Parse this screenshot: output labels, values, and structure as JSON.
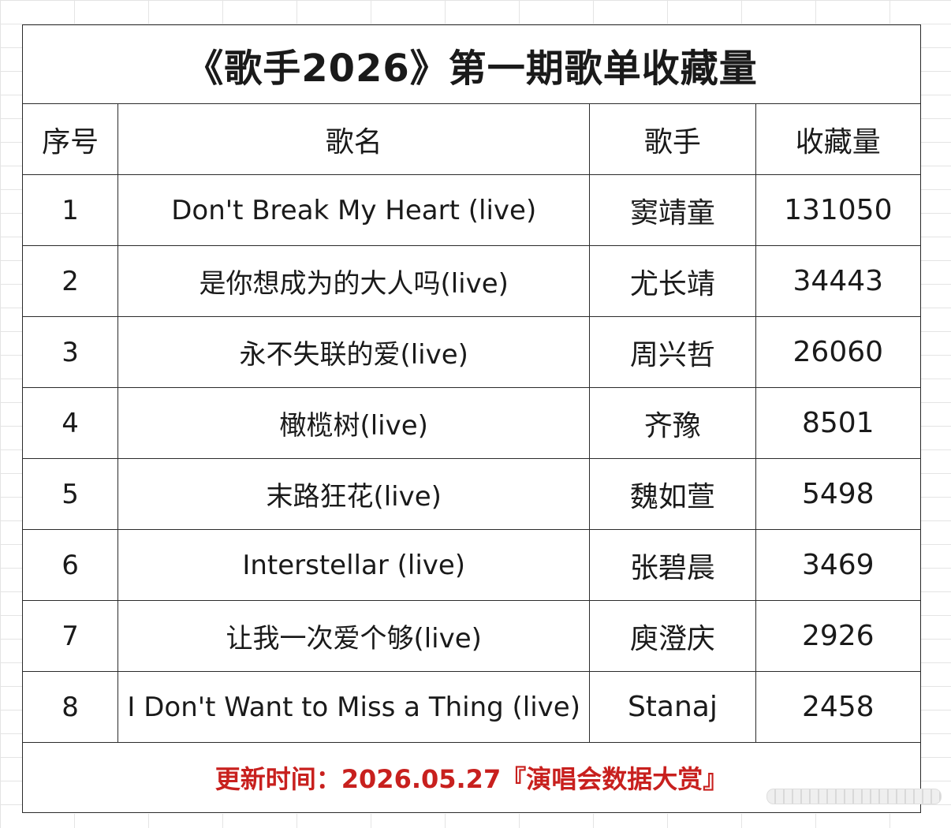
{
  "table": {
    "title": "《歌手2026》第一期歌单收藏量",
    "headers": {
      "index": "序号",
      "song": "歌名",
      "artist": "歌手",
      "count": "收藏量"
    },
    "rows": [
      {
        "index": "1",
        "song": "Don't Break My Heart (live)",
        "artist": "窦靖童",
        "count": "131050"
      },
      {
        "index": "2",
        "song": "是你想成为的大人吗(live)",
        "artist": "尤长靖",
        "count": "34443"
      },
      {
        "index": "3",
        "song": "永不失联的爱(live)",
        "artist": "周兴哲",
        "count": "26060"
      },
      {
        "index": "4",
        "song": "橄榄树(live)",
        "artist": "齐豫",
        "count": "8501"
      },
      {
        "index": "5",
        "song": "末路狂花(live)",
        "artist": "魏如萱",
        "count": "5498"
      },
      {
        "index": "6",
        "song": "Interstellar (live)",
        "artist": "张碧晨",
        "count": "3469"
      },
      {
        "index": "7",
        "song": "让我一次爱个够(live)",
        "artist": "庾澄庆",
        "count": "2926"
      },
      {
        "index": "8",
        "song": "I Don't Want to Miss a Thing (live)",
        "artist": "Stanaj",
        "count": "2458"
      }
    ],
    "footer": "更新时间：2026.05.27『演唱会数据大赏』"
  },
  "colors": {
    "footer_text": "#c8201e",
    "border": "#2b2b2b"
  }
}
